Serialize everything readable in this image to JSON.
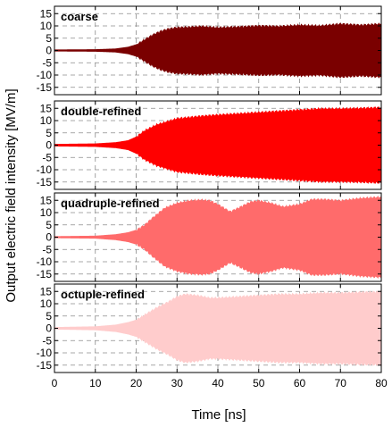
{
  "chart_data": {
    "type": "area",
    "ylabel": "Output electric field intensity [MV/m]",
    "xlabel": "Time [ns]",
    "xlim": [
      0,
      80
    ],
    "ylim": [
      -18,
      18
    ],
    "x_ticks": [
      0,
      10,
      20,
      30,
      40,
      50,
      60,
      70,
      80
    ],
    "y_ticks": [
      -15,
      -10,
      -5,
      0,
      5,
      10,
      15
    ],
    "grid": true,
    "panels": [
      {
        "label": "coarse",
        "color": "#7a0000",
        "envelope": {
          "t": [
            0,
            10,
            15,
            18,
            20,
            22,
            24,
            26,
            28,
            30,
            33,
            36,
            40,
            45,
            50,
            55,
            60,
            65,
            70,
            75,
            80
          ],
          "amp": [
            0.4,
            0.5,
            0.8,
            1.5,
            2.5,
            4.5,
            6.5,
            8.0,
            9.0,
            9.5,
            9.7,
            10.0,
            9.5,
            9.8,
            10.2,
            10.0,
            10.5,
            10.2,
            11.0,
            10.5,
            11.0
          ]
        }
      },
      {
        "label": "double-refined",
        "color": "#ff0000",
        "envelope": {
          "t": [
            0,
            10,
            15,
            18,
            20,
            22,
            25,
            28,
            30,
            33,
            36,
            40,
            45,
            50,
            55,
            60,
            65,
            70,
            75,
            80
          ],
          "amp": [
            0.5,
            0.7,
            1.2,
            2.0,
            3.5,
            6.0,
            8.5,
            10.0,
            11.0,
            11.5,
            12.0,
            12.5,
            13.0,
            13.5,
            14.0,
            14.5,
            15.0,
            15.0,
            15.2,
            15.5
          ]
        }
      },
      {
        "label": "quadruple-refined",
        "color": "#ff6b6b",
        "envelope": {
          "t": [
            0,
            10,
            15,
            18,
            20,
            22,
            24,
            27,
            30,
            33,
            36,
            38,
            40,
            43,
            45,
            48,
            50,
            53,
            56,
            60,
            63,
            66,
            70,
            75,
            80
          ],
          "amp": [
            0.4,
            0.6,
            1.2,
            2.0,
            3.0,
            5.0,
            8.0,
            12.0,
            14.0,
            15.0,
            15.3,
            15.0,
            13.5,
            10.5,
            12.0,
            14.5,
            15.0,
            14.0,
            12.5,
            13.5,
            15.5,
            15.5,
            15.0,
            16.0,
            16.5
          ]
        }
      },
      {
        "label": "octuple-refined",
        "color": "#ffcccc",
        "envelope": {
          "t": [
            0,
            10,
            15,
            18,
            20,
            22,
            25,
            28,
            30,
            32,
            35,
            38,
            40,
            45,
            50,
            55,
            60,
            65,
            70,
            75,
            80
          ],
          "amp": [
            0.5,
            0.8,
            1.5,
            2.5,
            3.5,
            5.5,
            8.5,
            11.0,
            13.0,
            14.0,
            13.5,
            12.5,
            12.5,
            13.0,
            13.5,
            14.0,
            14.0,
            14.5,
            14.5,
            14.8,
            15.0
          ]
        }
      }
    ]
  }
}
